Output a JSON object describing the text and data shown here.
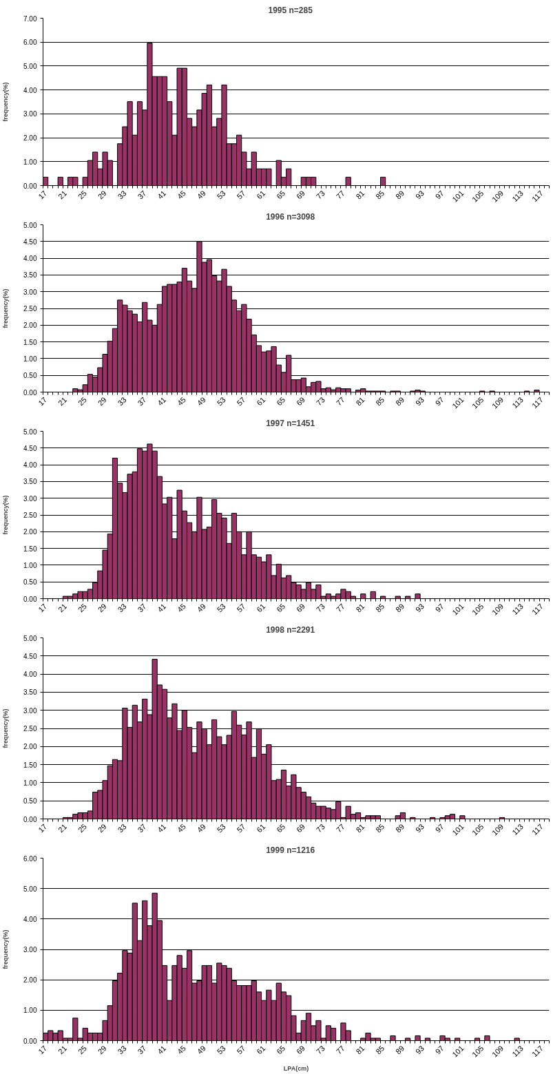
{
  "chart_data": [
    {
      "type": "bar",
      "title": "1995      n=285",
      "ylabel": "frequency(%)",
      "color": "#993366",
      "grid": "y",
      "categories": [
        "17",
        null,
        null,
        null,
        "21",
        null,
        null,
        null,
        "25",
        null,
        null,
        null,
        "29",
        null,
        null,
        null,
        "33",
        null,
        null,
        null,
        "37",
        null,
        null,
        null,
        "41",
        null,
        null,
        null,
        "45",
        null,
        null,
        null,
        "49",
        null,
        null,
        null,
        "53",
        null,
        null,
        null,
        "57",
        null,
        null,
        null,
        "61",
        null,
        null,
        null,
        "65",
        null,
        null,
        null,
        "69",
        null,
        null,
        null,
        "73",
        null,
        null,
        null,
        "77",
        null,
        null,
        null,
        "81",
        null,
        null,
        null,
        "85",
        null,
        null,
        null,
        "89",
        null,
        null,
        null,
        "93",
        null,
        null,
        null,
        "97",
        null,
        null,
        null,
        "101",
        null,
        null,
        null,
        "105",
        null,
        null,
        null,
        "109",
        null,
        null,
        null,
        "113",
        null,
        null,
        null,
        "117",
        null
      ],
      "values": [
        0.35,
        null,
        null,
        0.35,
        null,
        0.35,
        0.35,
        null,
        0.35,
        1.05,
        1.4,
        0.7,
        1.4,
        1.05,
        null,
        1.75,
        2.46,
        3.51,
        2.11,
        3.51,
        3.16,
        5.96,
        4.56,
        4.56,
        4.56,
        3.51,
        2.11,
        4.91,
        4.91,
        2.81,
        2.46,
        3.16,
        3.86,
        4.21,
        2.46,
        2.81,
        4.21,
        1.75,
        1.75,
        2.11,
        1.4,
        0.7,
        1.4,
        0.7,
        0.7,
        0.7,
        null,
        1.05,
        0.35,
        0.7,
        null,
        null,
        0.35,
        0.35,
        0.35,
        null,
        null,
        null,
        null,
        null,
        null,
        0.35,
        null,
        null,
        null,
        null,
        null,
        null,
        0.35,
        null,
        null,
        null,
        null,
        null,
        null,
        null,
        null,
        null,
        null,
        null,
        null,
        null,
        null,
        null,
        null,
        null,
        null,
        null,
        null,
        null,
        null,
        null,
        null,
        null,
        null,
        null,
        null,
        null,
        null,
        null,
        null,
        null
      ],
      "ylim": [
        0,
        7
      ],
      "yticks": [
        {
          "value": 0,
          "label": "0.00"
        },
        {
          "value": 1,
          "label": "1.00"
        },
        {
          "value": 2,
          "label": "2.00"
        },
        {
          "value": 3,
          "label": "3.00"
        },
        {
          "value": 4,
          "label": "4.00"
        },
        {
          "value": 5,
          "label": "5.00"
        },
        {
          "value": 6,
          "label": "6.00"
        },
        {
          "value": 7,
          "label": "7.00"
        }
      ]
    },
    {
      "type": "bar",
      "title": "1996      n=3098",
      "ylabel": "frequency(%)",
      "color": "#993366",
      "grid": "y",
      "categories": [
        "17",
        null,
        null,
        null,
        "21",
        null,
        null,
        null,
        "25",
        null,
        null,
        null,
        "29",
        null,
        null,
        null,
        "33",
        null,
        null,
        null,
        "37",
        null,
        null,
        null,
        "41",
        null,
        null,
        null,
        "45",
        null,
        null,
        null,
        "49",
        null,
        null,
        null,
        "53",
        null,
        null,
        null,
        "57",
        null,
        null,
        null,
        "61",
        null,
        null,
        null,
        "65",
        null,
        null,
        null,
        "69",
        null,
        null,
        null,
        "73",
        null,
        null,
        null,
        "77",
        null,
        null,
        null,
        "81",
        null,
        null,
        null,
        "85",
        null,
        null,
        null,
        "89",
        null,
        null,
        null,
        "93",
        null,
        null,
        null,
        "97",
        null,
        null,
        null,
        "101",
        null,
        null,
        null,
        "105",
        null,
        null,
        null,
        "109",
        null,
        null,
        null,
        "113",
        null,
        null,
        null,
        "117",
        null
      ],
      "values": [
        null,
        null,
        null,
        null,
        null,
        null,
        0.1,
        0.07,
        0.22,
        0.53,
        0.45,
        0.73,
        1.13,
        1.52,
        1.9,
        2.75,
        2.6,
        2.43,
        2.33,
        2.1,
        2.68,
        2.15,
        2.0,
        2.62,
        3.16,
        3.22,
        3.22,
        3.29,
        3.7,
        3.32,
        3.1,
        4.5,
        3.88,
        3.96,
        3.48,
        3.32,
        3.67,
        3.16,
        2.75,
        2.43,
        2.62,
        2.18,
        1.71,
        1.39,
        1.2,
        1.23,
        1.36,
        0.81,
        0.59,
        1.1,
        0.37,
        0.37,
        0.42,
        0.16,
        0.29,
        0.32,
        0.1,
        0.13,
        0.07,
        0.13,
        0.1,
        0.1,
        null,
        0.06,
        0.1,
        0.03,
        0.03,
        0.03,
        0.03,
        null,
        0.03,
        0.03,
        null,
        null,
        0.03,
        0.06,
        0.03,
        null,
        null,
        null,
        null,
        null,
        null,
        null,
        null,
        null,
        null,
        null,
        0.03,
        null,
        0.03,
        null,
        null,
        null,
        null,
        null,
        null,
        0.03,
        null,
        0.06,
        null,
        null
      ],
      "ylim": [
        0,
        5
      ],
      "yticks": [
        {
          "value": 0,
          "label": "0.00"
        },
        {
          "value": 0.5,
          "label": "0.50"
        },
        {
          "value": 1,
          "label": "1.00"
        },
        {
          "value": 1.5,
          "label": "1.50"
        },
        {
          "value": 2,
          "label": "2.00"
        },
        {
          "value": 2.5,
          "label": "2.50"
        },
        {
          "value": 3,
          "label": "3.00"
        },
        {
          "value": 3.5,
          "label": "3.50"
        },
        {
          "value": 4,
          "label": "4.00"
        },
        {
          "value": 4.5,
          "label": "4.50"
        },
        {
          "value": 5,
          "label": "5.00"
        }
      ]
    },
    {
      "type": "bar",
      "title": "1997      n=1451",
      "ylabel": "frequency(%)",
      "color": "#993366",
      "grid": "y",
      "categories": [
        "17",
        null,
        null,
        null,
        "21",
        null,
        null,
        null,
        "25",
        null,
        null,
        null,
        "29",
        null,
        null,
        null,
        "33",
        null,
        null,
        null,
        "37",
        null,
        null,
        null,
        "41",
        null,
        null,
        null,
        "45",
        null,
        null,
        null,
        "49",
        null,
        null,
        null,
        "53",
        null,
        null,
        null,
        "57",
        null,
        null,
        null,
        "61",
        null,
        null,
        null,
        "65",
        null,
        null,
        null,
        "69",
        null,
        null,
        null,
        "73",
        null,
        null,
        null,
        "77",
        null,
        null,
        null,
        "81",
        null,
        null,
        null,
        "85",
        null,
        null,
        null,
        "89",
        null,
        null,
        null,
        "93",
        null,
        null,
        null,
        "97",
        null,
        null,
        null,
        "101",
        null,
        null,
        null,
        "105",
        null,
        null,
        null,
        "109",
        null,
        null,
        null,
        "113",
        null,
        null,
        null,
        "117",
        null
      ],
      "values": [
        null,
        null,
        null,
        null,
        0.07,
        0.07,
        0.14,
        0.21,
        0.21,
        0.28,
        0.48,
        0.83,
        1.45,
        1.93,
        4.2,
        3.45,
        3.17,
        3.72,
        3.79,
        4.48,
        4.41,
        4.62,
        4.41,
        3.65,
        2.83,
        3.03,
        1.79,
        3.24,
        2.62,
        2.27,
        2.0,
        3.03,
        2.07,
        2.14,
        2.96,
        2.55,
        2.41,
        1.65,
        2.55,
        2.0,
        1.31,
        2.0,
        1.31,
        1.24,
        1.1,
        1.31,
        0.69,
        1.03,
        0.62,
        0.69,
        0.48,
        0.41,
        0.28,
        0.48,
        0.28,
        0.41,
        0.07,
        0.14,
        0.07,
        0.14,
        0.28,
        0.21,
        0.07,
        null,
        0.14,
        null,
        0.21,
        null,
        0.07,
        null,
        null,
        0.07,
        null,
        0.07,
        null,
        0.14,
        null,
        null,
        null,
        null,
        null,
        null,
        null,
        null,
        null,
        null,
        null,
        null,
        null,
        null,
        null,
        null,
        null,
        null,
        null,
        null,
        null,
        null,
        null,
        null,
        null,
        null
      ],
      "ylim": [
        0,
        5
      ],
      "yticks": [
        {
          "value": 0,
          "label": "0.00"
        },
        {
          "value": 0.5,
          "label": "0.50"
        },
        {
          "value": 1,
          "label": "1.00"
        },
        {
          "value": 1.5,
          "label": "1.50"
        },
        {
          "value": 2,
          "label": "2.00"
        },
        {
          "value": 2.5,
          "label": "2.50"
        },
        {
          "value": 3,
          "label": "3.00"
        },
        {
          "value": 3.5,
          "label": "3.50"
        },
        {
          "value": 4,
          "label": "4.00"
        },
        {
          "value": 4.5,
          "label": "4.50"
        },
        {
          "value": 5,
          "label": "5.00"
        }
      ]
    },
    {
      "type": "bar",
      "title": "1998      n=2291",
      "ylabel": "frequency(%)",
      "color": "#993366",
      "grid": "y",
      "categories": [
        "17",
        null,
        null,
        null,
        "21",
        null,
        null,
        null,
        "25",
        null,
        null,
        null,
        "29",
        null,
        null,
        null,
        "33",
        null,
        null,
        null,
        "37",
        null,
        null,
        null,
        "41",
        null,
        null,
        null,
        "45",
        null,
        null,
        null,
        "49",
        null,
        null,
        null,
        "53",
        null,
        null,
        null,
        "57",
        null,
        null,
        null,
        "61",
        null,
        null,
        null,
        "65",
        null,
        null,
        null,
        "69",
        null,
        null,
        null,
        "73",
        null,
        null,
        null,
        "77",
        null,
        null,
        null,
        "81",
        null,
        null,
        null,
        "85",
        null,
        null,
        null,
        "89",
        null,
        null,
        null,
        "93",
        null,
        null,
        null,
        "97",
        null,
        null,
        null,
        "101",
        null,
        null,
        null,
        "105",
        null,
        null,
        null,
        "109",
        null,
        null,
        null,
        "113",
        null,
        null,
        null,
        "117",
        null
      ],
      "values": [
        null,
        null,
        null,
        null,
        0.04,
        0.04,
        0.13,
        0.17,
        0.17,
        0.22,
        0.74,
        0.79,
        1.06,
        1.47,
        1.64,
        1.61,
        3.06,
        2.53,
        3.14,
        2.68,
        3.31,
        2.88,
        4.41,
        3.7,
        3.58,
        2.79,
        3.18,
        2.44,
        3.0,
        2.53,
        1.83,
        2.68,
        2.49,
        2.05,
        2.74,
        2.27,
        2.05,
        2.31,
        2.97,
        2.59,
        2.32,
        2.68,
        1.7,
        2.49,
        1.79,
        2.05,
        1.06,
        1.09,
        1.35,
        0.91,
        1.22,
        0.87,
        0.74,
        0.61,
        0.44,
        0.35,
        0.35,
        0.3,
        0.26,
        0.48,
        0.04,
        0.35,
        0.13,
        0.17,
        0.04,
        0.09,
        0.09,
        0.09,
        null,
        null,
        null,
        0.09,
        0.17,
        null,
        0.04,
        null,
        null,
        null,
        0.04,
        null,
        0.04,
        0.09,
        0.13,
        null,
        0.09,
        null,
        null,
        null,
        null,
        null,
        null,
        null,
        0.04,
        null,
        null,
        null,
        null,
        null,
        null,
        null,
        null,
        null
      ],
      "ylim": [
        0,
        5
      ],
      "yticks": [
        {
          "value": 0,
          "label": "0.00"
        },
        {
          "value": 0.5,
          "label": "0.50"
        },
        {
          "value": 1,
          "label": "1.00"
        },
        {
          "value": 1.5,
          "label": "1.50"
        },
        {
          "value": 2,
          "label": "2.00"
        },
        {
          "value": 2.5,
          "label": "2.50"
        },
        {
          "value": 3,
          "label": "3.00"
        },
        {
          "value": 3.5,
          "label": "3.50"
        },
        {
          "value": 4,
          "label": "4.00"
        },
        {
          "value": 4.5,
          "label": "4.50"
        },
        {
          "value": 5,
          "label": "5.00"
        }
      ]
    },
    {
      "type": "bar",
      "title": "1999      n=1216",
      "ylabel": "frequency(%)",
      "xlabel": "LPA(cm)",
      "color": "#993366",
      "grid": "y",
      "categories": [
        "17",
        null,
        null,
        null,
        "21",
        null,
        null,
        null,
        "25",
        null,
        null,
        null,
        "29",
        null,
        null,
        null,
        "33",
        null,
        null,
        null,
        "37",
        null,
        null,
        null,
        "41",
        null,
        null,
        null,
        "45",
        null,
        null,
        null,
        "49",
        null,
        null,
        null,
        "53",
        null,
        null,
        null,
        "57",
        null,
        null,
        null,
        "61",
        null,
        null,
        null,
        "65",
        null,
        null,
        null,
        "69",
        null,
        null,
        null,
        "73",
        null,
        null,
        null,
        "77",
        null,
        null,
        null,
        "81",
        null,
        null,
        null,
        "85",
        null,
        null,
        null,
        "89",
        null,
        null,
        null,
        "93",
        null,
        null,
        null,
        "97",
        null,
        null,
        null,
        "101",
        null,
        null,
        null,
        "105",
        null,
        null,
        null,
        "109",
        null,
        null,
        null,
        "113",
        null,
        null,
        null,
        "117",
        null
      ],
      "values": [
        0.25,
        0.33,
        0.25,
        0.33,
        0.08,
        0.08,
        0.74,
        0.08,
        0.41,
        0.25,
        0.25,
        0.25,
        0.66,
        1.15,
        1.97,
        2.22,
        2.96,
        2.88,
        4.52,
        3.29,
        4.6,
        3.78,
        4.85,
        3.95,
        2.47,
        1.32,
        2.47,
        2.8,
        2.38,
        2.96,
        1.89,
        1.97,
        2.47,
        2.47,
        1.89,
        2.55,
        2.47,
        2.38,
        1.97,
        1.81,
        1.81,
        1.81,
        1.97,
        1.6,
        1.32,
        1.66,
        1.32,
        1.89,
        1.6,
        1.48,
        0.82,
        0.25,
        0.66,
        0.9,
        0.49,
        0.66,
        0.08,
        0.49,
        0.41,
        null,
        0.58,
        0.33,
        null,
        null,
        0.08,
        0.25,
        0.08,
        0.08,
        null,
        null,
        0.16,
        null,
        null,
        0.08,
        null,
        0.16,
        null,
        0.08,
        null,
        null,
        0.16,
        0.08,
        null,
        0.08,
        null,
        null,
        null,
        0.08,
        null,
        0.16,
        null,
        null,
        null,
        null,
        null,
        0.08,
        null,
        null,
        null,
        null,
        null,
        null
      ],
      "ylim": [
        0,
        6
      ],
      "yticks": [
        {
          "value": 0,
          "label": "0.00"
        },
        {
          "value": 1,
          "label": "1.00"
        },
        {
          "value": 2,
          "label": "2.00"
        },
        {
          "value": 3,
          "label": "3.00"
        },
        {
          "value": 4,
          "label": "4.00"
        },
        {
          "value": 5,
          "label": "5.00"
        },
        {
          "value": 6,
          "label": "6.00"
        }
      ]
    }
  ]
}
